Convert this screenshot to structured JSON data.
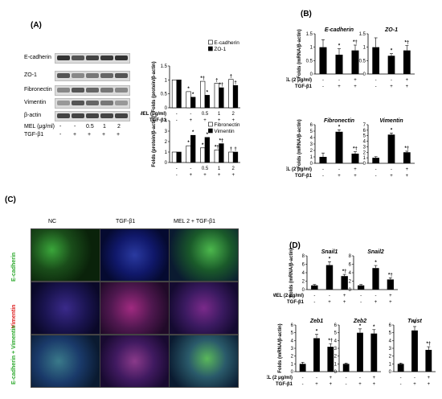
{
  "panels": {
    "A": "(A)",
    "B": "(B)",
    "C": "(C)",
    "D": "(D)"
  },
  "panelA": {
    "blot_labels": [
      "E-cadherin",
      "ZO-1",
      "Fibronectin",
      "Vimentin",
      "β-actin"
    ],
    "mel_label": "MEL (μg/ml)",
    "tgf_label": "TGF-β1",
    "mel_values": [
      "-",
      "-",
      "0.5",
      "1",
      "2"
    ],
    "tgf_values": [
      "-",
      "+",
      "+",
      "+",
      "+"
    ]
  },
  "panelC": {
    "col_headers": [
      "NC",
      "TGF-β1",
      "MEL 2 + TGF-β1"
    ],
    "row_labels": [
      "E-cadherin",
      "Vimentin",
      "E-cadherin + Vimentin"
    ]
  },
  "sym": {
    "star": "*",
    "dagger": "†",
    "star_dagger": "*†"
  },
  "chart_data": [
    {
      "id": "A-top",
      "type": "bar",
      "ylabel": "Folds (protein/β-actin)",
      "ylim": [
        0,
        1.5
      ],
      "yticks": [
        "0",
        "0.5",
        "1",
        "1.5"
      ],
      "row1_label": "MEL (μg/ml)",
      "row1": [
        "-",
        "-",
        "0.5",
        "1",
        "2"
      ],
      "row2_label": "TGF-β1",
      "row2": [
        "-",
        "+",
        "+",
        "+",
        "+"
      ],
      "series": [
        {
          "name": "E-cadherin",
          "color": "#ffffff",
          "values": [
            1.0,
            0.58,
            0.95,
            0.88,
            1.02
          ]
        },
        {
          "name": "ZO-1",
          "color": "#000000",
          "values": [
            1.0,
            0.38,
            0.45,
            0.72,
            0.8
          ]
        }
      ],
      "annotations": [
        [
          "",
          ""
        ],
        [
          "*",
          "*"
        ],
        [
          "*†",
          "*"
        ],
        [
          "†",
          "*†"
        ],
        [
          "†",
          "†"
        ]
      ]
    },
    {
      "id": "A-bottom",
      "type": "bar",
      "ylabel": "Folds (protein/β-actin)",
      "ylim": [
        0,
        4
      ],
      "yticks": [
        "0",
        "1",
        "2",
        "3",
        "4"
      ],
      "row1_label": "",
      "row1": [
        "-",
        "-",
        "0.5",
        "1",
        "2"
      ],
      "row2_label": "",
      "row2": [
        "-",
        "+",
        "+",
        "+",
        "+"
      ],
      "series": [
        {
          "name": "Fibronectin",
          "color": "#ffffff",
          "values": [
            1.0,
            1.6,
            1.4,
            1.2,
            1.0
          ]
        },
        {
          "name": "Vimentin",
          "color": "#000000",
          "values": [
            1.0,
            2.6,
            2.4,
            1.8,
            1.0
          ]
        }
      ],
      "annotations": [
        [
          "",
          ""
        ],
        [
          "*",
          "*"
        ],
        [
          "*",
          "*"
        ],
        [
          "*†",
          "*†"
        ],
        [
          "†",
          "†"
        ]
      ]
    },
    {
      "id": "B-Ecad",
      "type": "bar",
      "title": "E-cadherin",
      "ylabel": "Folds (mRNA/β-actin)",
      "ylim": [
        0,
        1.5
      ],
      "yticks": [
        "0",
        "0.5",
        "1",
        "1.5"
      ],
      "row1_label": "MEL (2 μg/ml)",
      "row1": [
        "-",
        "-",
        "+"
      ],
      "row2_label": "TGF-β1",
      "row2": [
        "-",
        "+",
        "+"
      ],
      "values": [
        1.0,
        0.72,
        0.88
      ],
      "errors": [
        0.28,
        0.22,
        0.2
      ],
      "annotations": [
        "",
        "*",
        "*†"
      ]
    },
    {
      "id": "B-ZO1",
      "type": "bar",
      "title": "ZO-1",
      "ylabel": "",
      "ylim": [
        0,
        1.5
      ],
      "yticks": [
        "0",
        "0.5",
        "1",
        "1.5"
      ],
      "row1_label": "",
      "row1": [
        "-",
        "-",
        "+"
      ],
      "row2_label": "",
      "row2": [
        "-",
        "+",
        "+"
      ],
      "values": [
        1.0,
        0.68,
        0.88
      ],
      "errors": [
        0.35,
        0.08,
        0.18
      ],
      "annotations": [
        "",
        "*",
        "*†"
      ]
    },
    {
      "id": "B-Fn",
      "type": "bar",
      "title": "Fibronectin",
      "ylabel": "Folds (mRNA/β-actin)",
      "ylim": [
        0,
        6
      ],
      "yticks": [
        "0",
        "1",
        "2",
        "3",
        "4",
        "5",
        "6"
      ],
      "row1_label": "MEL (2 μg/ml)",
      "row1": [
        "-",
        "-",
        "+"
      ],
      "row2_label": "TGF-β1",
      "row2": [
        "-",
        "+",
        "+"
      ],
      "values": [
        1.0,
        4.9,
        1.5
      ],
      "errors": [
        0.6,
        0.3,
        0.3
      ],
      "annotations": [
        "",
        "*",
        "*†"
      ]
    },
    {
      "id": "B-Vim",
      "type": "bar",
      "title": "Vimentin",
      "ylabel": "",
      "ylim": [
        0,
        7
      ],
      "yticks": [
        "0",
        "1",
        "2",
        "3",
        "4",
        "5",
        "6",
        "7"
      ],
      "row1_label": "",
      "row1": [
        "-",
        "-",
        "+"
      ],
      "row2_label": "",
      "row2": [
        "-",
        "+",
        "+"
      ],
      "values": [
        1.0,
        5.2,
        2.0
      ],
      "errors": [
        0.2,
        0.3,
        0.2
      ],
      "annotations": [
        "",
        "*",
        "*†"
      ]
    },
    {
      "id": "D-Snail1",
      "type": "bar",
      "title": "Snail1",
      "ylabel": "Folds (mRNA/β-actin)",
      "ylim": [
        0,
        8
      ],
      "yticks": [
        "0",
        "2",
        "4",
        "6",
        "8"
      ],
      "row1_label": "MEL (2 μg/ml)",
      "row1": [
        "-",
        "-",
        "+"
      ],
      "row2_label": "TGF-β1",
      "row2": [
        "-",
        "+",
        "+"
      ],
      "values": [
        1.0,
        5.8,
        3.2
      ],
      "errors": [
        0.2,
        0.8,
        0.4
      ],
      "annotations": [
        "",
        "*",
        "*†"
      ]
    },
    {
      "id": "D-Snail2",
      "type": "bar",
      "title": "Snail2",
      "ylabel": "",
      "ylim": [
        0,
        8
      ],
      "yticks": [
        "0",
        "2",
        "4",
        "6",
        "8"
      ],
      "row1_label": "",
      "row1": [
        "-",
        "-",
        "+"
      ],
      "row2_label": "",
      "row2": [
        "-",
        "+",
        "+"
      ],
      "values": [
        1.0,
        5.1,
        2.4
      ],
      "errors": [
        0.2,
        0.6,
        0.4
      ],
      "annotations": [
        "",
        "*",
        "*†"
      ]
    },
    {
      "id": "D-Zeb1",
      "type": "bar",
      "title": "Zeb1",
      "ylabel": "Folds (mRNA/β-actin)",
      "ylim": [
        0,
        6
      ],
      "yticks": [
        "0",
        "1",
        "2",
        "3",
        "4",
        "5",
        "6"
      ],
      "row1_label": "MEL (2 μg/ml)",
      "row1": [
        "-",
        "-",
        "+"
      ],
      "row2_label": "TGF-β1",
      "row2": [
        "-",
        "+",
        "+"
      ],
      "values": [
        1.0,
        4.3,
        3.2
      ],
      "errors": [
        0.2,
        0.5,
        0.4
      ],
      "annotations": [
        "",
        "*",
        "*†"
      ]
    },
    {
      "id": "D-Zeb2",
      "type": "bar",
      "title": "Zeb2",
      "ylabel": "",
      "ylim": [
        0,
        6
      ],
      "yticks": [
        "0",
        "1",
        "2",
        "3",
        "4",
        "5",
        "6"
      ],
      "row1_label": "",
      "row1": [
        "-",
        "-",
        "+"
      ],
      "row2_label": "",
      "row2": [
        "-",
        "+",
        "+"
      ],
      "values": [
        1.0,
        5.0,
        4.9
      ],
      "errors": [
        0.1,
        0.5,
        0.5
      ],
      "annotations": [
        "",
        "*",
        "*"
      ]
    },
    {
      "id": "D-Twist",
      "type": "bar",
      "title": "Twist",
      "ylabel": "",
      "ylim": [
        0,
        6
      ],
      "yticks": [
        "0",
        "1",
        "2",
        "3",
        "4",
        "5",
        "6"
      ],
      "row1_label": "",
      "row1": [
        "-",
        "-",
        "+"
      ],
      "row2_label": "",
      "row2": [
        "-",
        "+",
        "+"
      ],
      "values": [
        1.0,
        5.3,
        2.8
      ],
      "errors": [
        0.1,
        0.5,
        0.4
      ],
      "annotations": [
        "",
        "*",
        "*†"
      ]
    }
  ]
}
